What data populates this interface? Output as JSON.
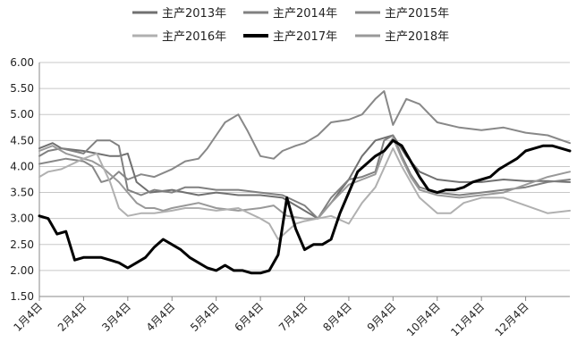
{
  "chart_data": {
    "type": "line",
    "title": "",
    "xlabel": "",
    "ylabel": "",
    "ylim": [
      1.5,
      6.0
    ],
    "yticks": [
      "6.00",
      "5.50",
      "5.00",
      "4.50",
      "4.00",
      "3.50",
      "3.00",
      "2.50",
      "2.00",
      "1.50"
    ],
    "xticks": [
      "1月4日",
      "2月4日",
      "3月4日",
      "4月4日",
      "5月4日",
      "6月4日",
      "7月4日",
      "8月4日",
      "9月4日",
      "10月4日",
      "11月4日",
      "12月4日"
    ],
    "xlim": [
      1,
      13
    ],
    "grid": "horizontal",
    "legend_position": "top",
    "series": [
      {
        "name": "主产2013年",
        "color": "#707070",
        "width": 2,
        "x": [
          1.0,
          1.3,
          1.5,
          2.0,
          2.3,
          2.6,
          2.8,
          3.0,
          3.2,
          3.5,
          4.0,
          4.3,
          4.6,
          5.0,
          5.5,
          6.0,
          6.5,
          7.0,
          7.3,
          7.6,
          8.0,
          8.3,
          8.6,
          9.0,
          9.3,
          9.6,
          10.0,
          10.5,
          11.0,
          11.5,
          12.0,
          12.5,
          13.0
        ],
        "y": [
          4.35,
          4.45,
          4.35,
          4.3,
          4.25,
          4.2,
          4.2,
          4.25,
          3.7,
          3.5,
          3.55,
          3.5,
          3.45,
          3.5,
          3.45,
          3.45,
          3.4,
          3.15,
          3.0,
          3.3,
          3.75,
          4.2,
          4.5,
          4.6,
          4.2,
          3.9,
          3.75,
          3.7,
          3.7,
          3.75,
          3.72,
          3.72,
          3.7
        ]
      },
      {
        "name": "主产2014年",
        "color": "#808080",
        "width": 2,
        "x": [
          1.0,
          1.2,
          1.5,
          2.0,
          2.3,
          2.6,
          2.8,
          3.0,
          3.3,
          3.6,
          4.0,
          4.3,
          4.6,
          5.0,
          5.5,
          6.0,
          6.5,
          7.0,
          7.3,
          7.6,
          8.0,
          8.3,
          8.6,
          8.8,
          9.0,
          9.2,
          9.4,
          9.6,
          10.0,
          10.5,
          11.0,
          11.5,
          12.0,
          12.5,
          13.0
        ],
        "y": [
          4.2,
          4.3,
          4.35,
          4.25,
          4.5,
          4.5,
          4.4,
          3.55,
          3.45,
          3.55,
          3.5,
          3.6,
          3.6,
          3.55,
          3.55,
          3.5,
          3.45,
          3.25,
          3.0,
          3.4,
          3.75,
          3.8,
          3.9,
          4.5,
          4.6,
          4.2,
          3.85,
          3.6,
          3.5,
          3.45,
          3.5,
          3.55,
          3.6,
          3.7,
          3.75
        ]
      },
      {
        "name": "主产2015年",
        "color": "#888888",
        "width": 2,
        "x": [
          1.0,
          1.3,
          1.6,
          2.0,
          2.2,
          2.4,
          2.6,
          2.8,
          3.0,
          3.3,
          3.6,
          4.0,
          4.3,
          4.6,
          4.8,
          5.0,
          5.2,
          5.5,
          5.7,
          6.0,
          6.3,
          6.5,
          6.8,
          7.0,
          7.3,
          7.6,
          8.0,
          8.3,
          8.6,
          8.8,
          9.0,
          9.3,
          9.6,
          10.0,
          10.5,
          11.0,
          11.5,
          12.0,
          12.5,
          13.0
        ],
        "y": [
          4.05,
          4.1,
          4.15,
          4.1,
          4.0,
          3.7,
          3.75,
          3.9,
          3.75,
          3.85,
          3.8,
          3.95,
          4.1,
          4.15,
          4.35,
          4.6,
          4.85,
          5.0,
          4.7,
          4.2,
          4.15,
          4.3,
          4.4,
          4.45,
          4.6,
          4.85,
          4.9,
          5.0,
          5.3,
          5.45,
          4.8,
          5.3,
          5.2,
          4.85,
          4.75,
          4.7,
          4.75,
          4.65,
          4.6,
          4.45
        ]
      },
      {
        "name": "主产2016年",
        "color": "#b0b0b0",
        "width": 2,
        "x": [
          1.0,
          1.2,
          1.5,
          2.0,
          2.3,
          2.6,
          2.8,
          3.0,
          3.3,
          3.6,
          4.0,
          4.3,
          4.6,
          5.0,
          5.5,
          6.0,
          6.2,
          6.4,
          6.6,
          6.8,
          7.0,
          7.3,
          7.6,
          8.0,
          8.3,
          8.6,
          9.0,
          9.2,
          9.4,
          9.6,
          10.0,
          10.3,
          10.6,
          11.0,
          11.5,
          12.0,
          12.5,
          13.0
        ],
        "y": [
          3.8,
          3.9,
          3.95,
          4.15,
          4.25,
          3.7,
          3.2,
          3.05,
          3.1,
          3.1,
          3.15,
          3.2,
          3.2,
          3.15,
          3.2,
          3.0,
          2.9,
          2.6,
          2.75,
          2.9,
          2.95,
          3.0,
          3.05,
          2.9,
          3.3,
          3.6,
          4.35,
          4.0,
          3.7,
          3.4,
          3.1,
          3.1,
          3.3,
          3.4,
          3.4,
          3.25,
          3.1,
          3.15
        ]
      },
      {
        "name": "主产2017年",
        "color": "#000000",
        "width": 3,
        "x": [
          1.0,
          1.2,
          1.4,
          1.6,
          1.8,
          2.0,
          2.2,
          2.4,
          2.6,
          2.8,
          3.0,
          3.2,
          3.4,
          3.6,
          3.8,
          4.0,
          4.2,
          4.4,
          4.6,
          4.8,
          5.0,
          5.2,
          5.4,
          5.6,
          5.8,
          6.0,
          6.2,
          6.4,
          6.6,
          6.8,
          7.0,
          7.2,
          7.4,
          7.6,
          7.8,
          8.0,
          8.2,
          8.4,
          8.6,
          8.8,
          9.0,
          9.2,
          9.4,
          9.6,
          9.8,
          10.0,
          10.2,
          10.4,
          10.6,
          10.8,
          11.0,
          11.2,
          11.4,
          11.6,
          11.8,
          12.0,
          12.2,
          12.4,
          12.6,
          12.8,
          13.0
        ],
        "y": [
          3.05,
          3.0,
          2.7,
          2.75,
          2.2,
          2.25,
          2.25,
          2.25,
          2.2,
          2.15,
          2.05,
          2.15,
          2.25,
          2.45,
          2.6,
          2.5,
          2.4,
          2.25,
          2.15,
          2.05,
          2.0,
          2.1,
          2.0,
          2.0,
          1.95,
          1.95,
          2.0,
          2.3,
          3.4,
          2.8,
          2.4,
          2.5,
          2.5,
          2.6,
          3.1,
          3.5,
          3.9,
          4.05,
          4.2,
          4.3,
          4.5,
          4.4,
          4.1,
          3.8,
          3.55,
          3.5,
          3.55,
          3.55,
          3.6,
          3.7,
          3.75,
          3.8,
          3.95,
          4.05,
          4.15,
          4.3,
          4.35,
          4.4,
          4.4,
          4.35,
          4.3
        ]
      },
      {
        "name": "主产2018年",
        "color": "#999999",
        "width": 2,
        "x": [
          1.0,
          1.3,
          1.6,
          2.0,
          2.2,
          2.4,
          2.6,
          2.8,
          3.0,
          3.2,
          3.4,
          3.6,
          3.8,
          4.0,
          4.3,
          4.6,
          5.0,
          5.5,
          6.0,
          6.3,
          6.6,
          7.0,
          7.3,
          7.6,
          8.0,
          8.3,
          8.6,
          8.8,
          9.0,
          9.2,
          9.4,
          9.6,
          10.0,
          10.5,
          11.0,
          11.5,
          12.0,
          12.5,
          13.0
        ],
        "y": [
          4.3,
          4.4,
          4.25,
          4.15,
          4.1,
          4.0,
          3.85,
          3.7,
          3.5,
          3.3,
          3.2,
          3.2,
          3.15,
          3.2,
          3.25,
          3.3,
          3.2,
          3.15,
          3.2,
          3.25,
          3.05,
          3.0,
          3.0,
          3.3,
          3.65,
          3.75,
          3.85,
          4.3,
          4.55,
          4.15,
          3.8,
          3.55,
          3.45,
          3.4,
          3.45,
          3.5,
          3.65,
          3.8,
          3.9
        ]
      }
    ]
  }
}
